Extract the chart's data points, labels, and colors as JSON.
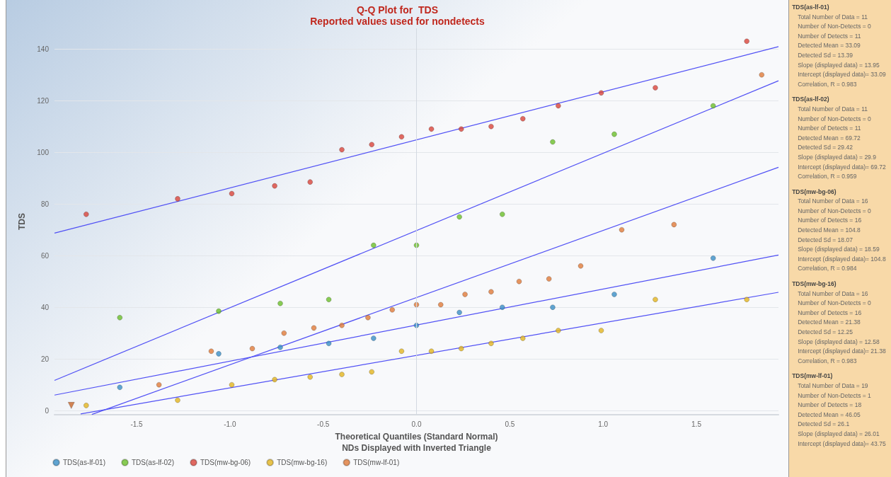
{
  "chart_data": {
    "type": "scatter",
    "title": "Q-Q Plot for  TDS",
    "subtitle": "Reported values used for nondetects",
    "xlabel": "Theoretical Quantiles (Standard Normal)\nNDs Displayed with Inverted Triangle",
    "ylabel": "TDS",
    "xlim": [
      -1.94,
      1.94
    ],
    "ylim": [
      -1.6,
      148
    ],
    "xticks": [
      -1.5,
      {
        "value": -1.0,
        "label": "-1.0"
      },
      -0.5,
      {
        "value": 0,
        "label": "0.0"
      },
      0.5,
      {
        "value": 1.0,
        "label": "1.0"
      },
      1.5
    ],
    "yticks": [
      0,
      20,
      40,
      60,
      80,
      100,
      120,
      140
    ],
    "grid": "y",
    "legend": "bottom left",
    "marker": "circle",
    "ref_lines": [
      {
        "axis": "x",
        "value": 0,
        "color": "#d3d9e1"
      }
    ],
    "series": [
      {
        "name": "TDS(as-lf-01)",
        "color": "#3a8fc7",
        "x": [
          -1.59,
          -1.06,
          -0.73,
          -0.47,
          -0.23,
          0.0,
          0.23,
          0.46,
          0.73,
          1.06,
          1.59
        ],
        "values": [
          9,
          22,
          24.5,
          26,
          28,
          33,
          38,
          40,
          40,
          45,
          59
        ]
      },
      {
        "name": "TDS(as-lf-02)",
        "color": "#6cbf2a",
        "x": [
          -1.59,
          -1.06,
          -0.73,
          -0.47,
          -0.23,
          0.0,
          0.23,
          0.46,
          0.73,
          1.06,
          1.59
        ],
        "values": [
          36,
          38.5,
          41.5,
          43,
          64,
          64,
          75,
          76,
          104,
          107,
          118
        ]
      },
      {
        "name": "TDS(mw-bg-06)",
        "color": "#d9453b",
        "x": [
          -1.77,
          -1.28,
          -0.99,
          -0.76,
          -0.57,
          -0.4,
          -0.24,
          -0.08,
          0.08,
          0.24,
          0.4,
          0.57,
          0.76,
          0.99,
          1.28,
          1.77
        ],
        "values": [
          76,
          82,
          84,
          87,
          88.5,
          101,
          103,
          106,
          109,
          109,
          110,
          113,
          118,
          123,
          125,
          143
        ]
      },
      {
        "name": "TDS(mw-bg-16)",
        "color": "#e3b51f",
        "x": [
          -1.77,
          -1.28,
          -0.99,
          -0.76,
          -0.57,
          -0.4,
          -0.24,
          -0.08,
          0.08,
          0.24,
          0.4,
          0.57,
          0.76,
          0.99,
          1.28,
          1.77
        ],
        "values": [
          2,
          4,
          10,
          12,
          13,
          14,
          15,
          23,
          23,
          24,
          26,
          28,
          31,
          31,
          43,
          43
        ]
      },
      {
        "name": "TDS(mw-lf-01)",
        "color": "#e07b39",
        "x": [
          -1.38,
          -1.1,
          -0.88,
          -0.71,
          -0.55,
          -0.4,
          -0.26,
          -0.13,
          0.0,
          0.13,
          0.26,
          0.4,
          0.55,
          0.71,
          0.88,
          1.1,
          1.38,
          1.85
        ],
        "values": [
          10,
          23,
          24,
          30,
          32,
          33,
          36,
          39,
          41,
          41,
          45,
          46,
          50,
          51,
          56,
          70,
          72,
          130
        ]
      },
      {
        "color": "#c8662a",
        "marker": "triangle",
        "x": [
          -1.85
        ],
        "values": [
          2
        ]
      },
      {
        "type": "line",
        "marker": "none",
        "color": "#5050f5",
        "x": [
          -1.94,
          1.94
        ],
        "values": [
          6.0,
          60.2
        ]
      },
      {
        "type": "line",
        "marker": "none",
        "color": "#5050f5",
        "x": [
          -1.94,
          1.94
        ],
        "values": [
          11.7,
          127.7
        ]
      },
      {
        "type": "line",
        "marker": "none",
        "color": "#5050f5",
        "x": [
          -1.94,
          1.94
        ],
        "values": [
          68.7,
          140.9
        ]
      },
      {
        "type": "line",
        "marker": "none",
        "color": "#5050f5",
        "x": [
          -1.8,
          1.94
        ],
        "values": [
          -1.3,
          45.8
        ]
      },
      {
        "type": "line",
        "marker": "none",
        "color": "#5050f5",
        "x": [
          -1.74,
          1.94
        ],
        "values": [
          -1.5,
          94.2
        ]
      }
    ],
    "annotations": [
      "TDS(as-lf-01)",
      "Total Number of Data = 11",
      "Number of Non-Detects = 0",
      "Number of Detects = 11",
      "Detected Mean = 33.09",
      "Detected Sd = 13.39",
      "Slope (displayed data) = 13.95",
      "Intercept (displayed data)= 33.09",
      "Correlation, R = 0.983",
      "TDS(as-lf-02)",
      "Total Number of Data = 11",
      "Number of Non-Detects = 0",
      "Number of Detects = 11",
      "Detected Mean = 69.72",
      "Detected Sd = 29.42",
      "Slope (displayed data) = 29.9",
      "Intercept (displayed data)= 69.72",
      "Correlation, R = 0.959",
      "TDS(mw-bg-06)",
      "Total Number of Data = 16",
      "Number of Non-Detects = 0",
      "Number of Detects = 16",
      "Detected Mean = 104.8",
      "Detected Sd = 18.07",
      "Slope (displayed data) = 18.59",
      "Intercept (displayed data)= 104.8",
      "Correlation, R = 0.984",
      "TDS(mw-bg-16)",
      "Total Number of Data = 16",
      "Number of Non-Detects = 0",
      "Number of Detects = 16",
      "Detected Mean = 21.38",
      "Detected Sd = 12.25",
      "Slope (displayed data) = 12.58",
      "Intercept (displayed data)= 21.38",
      "Correlation, R = 0.983",
      "TDS(mw-lf-01)",
      "Total Number of Data = 19",
      "Number of Non-Detects = 1",
      "Number of Detects = 18",
      "Detected Mean = 46.05",
      "Detected Sd = 26.1",
      "Slope (displayed data) = 26.01",
      "Intercept (displayed data)= 43.75"
    ]
  }
}
